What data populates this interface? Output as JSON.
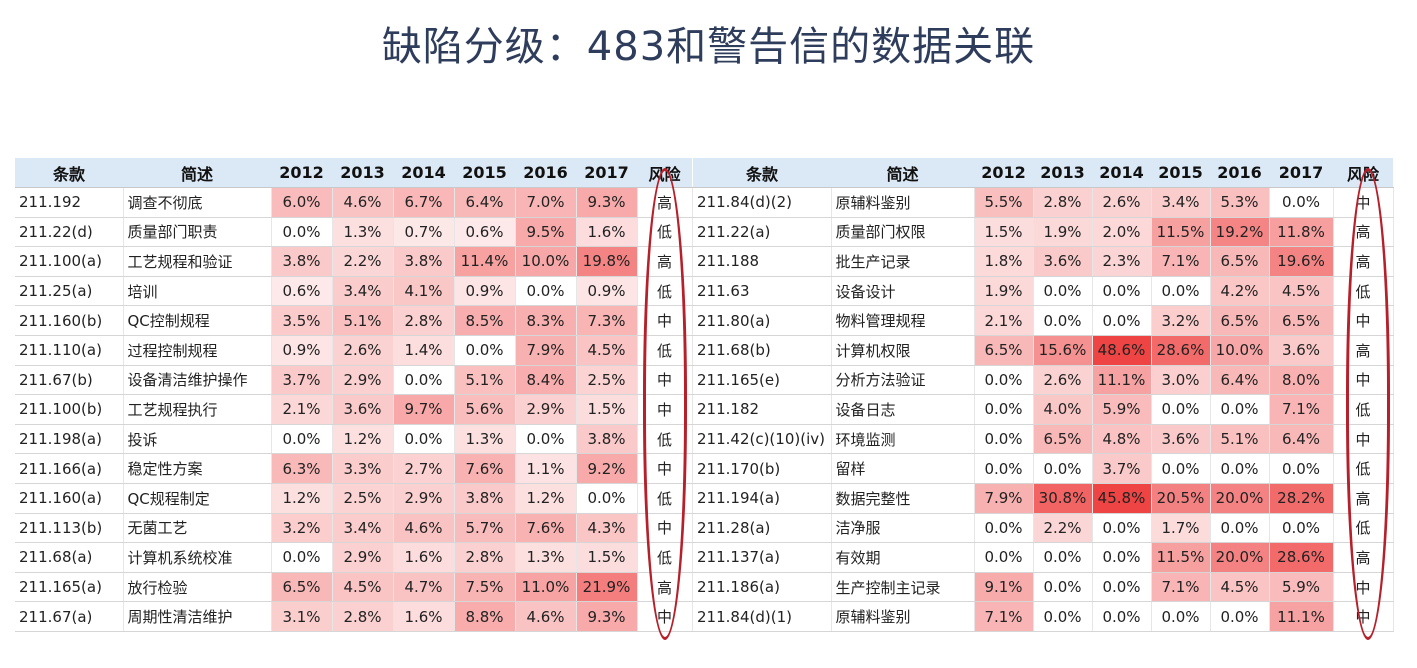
{
  "title": "缺陷分级：483和警告信的数据关联",
  "headers": [
    "条款",
    "简述",
    "2012",
    "2013",
    "2014",
    "2015",
    "2016",
    "2017",
    "风险"
  ],
  "left_rows": [
    {
      "code": "211.192",
      "desc": "调查不彻底",
      "values": [
        "6.0%",
        "4.6%",
        "6.7%",
        "6.4%",
        "7.0%",
        "9.3%"
      ],
      "risk": "高"
    },
    {
      "code": "211.22(d)",
      "desc": "质量部门职责",
      "values": [
        "0.0%",
        "1.3%",
        "0.7%",
        "0.6%",
        "9.5%",
        "1.6%"
      ],
      "risk": "低"
    },
    {
      "code": "211.100(a)",
      "desc": "工艺规程和验证",
      "values": [
        "3.8%",
        "2.2%",
        "3.8%",
        "11.4%",
        "10.0%",
        "19.8%"
      ],
      "risk": "高"
    },
    {
      "code": "211.25(a)",
      "desc": "培训",
      "values": [
        "0.6%",
        "3.4%",
        "4.1%",
        "0.9%",
        "0.0%",
        "0.9%"
      ],
      "risk": "低"
    },
    {
      "code": "211.160(b)",
      "desc": "QC控制规程",
      "values": [
        "3.5%",
        "5.1%",
        "2.8%",
        "8.5%",
        "8.3%",
        "7.3%"
      ],
      "risk": "中"
    },
    {
      "code": "211.110(a)",
      "desc": "过程控制规程",
      "values": [
        "0.9%",
        "2.6%",
        "1.4%",
        "0.0%",
        "7.9%",
        "4.5%"
      ],
      "risk": "低"
    },
    {
      "code": "211.67(b)",
      "desc": "设备清洁维护操作",
      "values": [
        "3.7%",
        "2.9%",
        "0.0%",
        "5.1%",
        "8.4%",
        "2.5%"
      ],
      "risk": "中"
    },
    {
      "code": "211.100(b)",
      "desc": "工艺规程执行",
      "values": [
        "2.1%",
        "3.6%",
        "9.7%",
        "5.6%",
        "2.9%",
        "1.5%"
      ],
      "risk": "中"
    },
    {
      "code": "211.198(a)",
      "desc": "投诉",
      "values": [
        "0.0%",
        "1.2%",
        "0.0%",
        "1.3%",
        "0.0%",
        "3.8%"
      ],
      "risk": "低"
    },
    {
      "code": "211.166(a)",
      "desc": "稳定性方案",
      "values": [
        "6.3%",
        "3.3%",
        "2.7%",
        "7.6%",
        "1.1%",
        "9.2%"
      ],
      "risk": "中"
    },
    {
      "code": "211.160(a)",
      "desc": "QC规程制定",
      "values": [
        "1.2%",
        "2.5%",
        "2.9%",
        "3.8%",
        "1.2%",
        "0.0%"
      ],
      "risk": "低"
    },
    {
      "code": "211.113(b)",
      "desc": "无菌工艺",
      "values": [
        "3.2%",
        "3.4%",
        "4.6%",
        "5.7%",
        "7.6%",
        "4.3%"
      ],
      "risk": "中"
    },
    {
      "code": "211.68(a)",
      "desc": "计算机系统校准",
      "values": [
        "0.0%",
        "2.9%",
        "1.6%",
        "2.8%",
        "1.3%",
        "1.5%"
      ],
      "risk": "低"
    },
    {
      "code": "211.165(a)",
      "desc": "放行检验",
      "values": [
        "6.5%",
        "4.5%",
        "4.7%",
        "7.5%",
        "11.0%",
        "21.9%"
      ],
      "risk": "高"
    },
    {
      "code": "211.67(a)",
      "desc": "周期性清洁维护",
      "values": [
        "3.1%",
        "2.8%",
        "1.6%",
        "8.8%",
        "4.6%",
        "9.3%"
      ],
      "risk": "中"
    }
  ],
  "right_rows": [
    {
      "code": "211.84(d)(2)",
      "desc": "原辅料鉴别",
      "values": [
        "5.5%",
        "2.8%",
        "2.6%",
        "3.4%",
        "5.3%",
        "0.0%"
      ],
      "risk": "中"
    },
    {
      "code": "211.22(a)",
      "desc": "质量部门权限",
      "values": [
        "1.5%",
        "1.9%",
        "2.0%",
        "11.5%",
        "19.2%",
        "11.8%"
      ],
      "risk": "高"
    },
    {
      "code": "211.188",
      "desc": "批生产记录",
      "values": [
        "1.8%",
        "3.6%",
        "2.3%",
        "7.1%",
        "6.5%",
        "19.6%"
      ],
      "risk": "高"
    },
    {
      "code": "211.63",
      "desc": "设备设计",
      "values": [
        "1.9%",
        "0.0%",
        "0.0%",
        "0.0%",
        "4.2%",
        "4.5%"
      ],
      "risk": "低"
    },
    {
      "code": "211.80(a)",
      "desc": "物料管理规程",
      "values": [
        "2.1%",
        "0.0%",
        "0.0%",
        "3.2%",
        "6.5%",
        "6.5%"
      ],
      "risk": "中"
    },
    {
      "code": "211.68(b)",
      "desc": "计算机权限",
      "values": [
        "6.5%",
        "15.6%",
        "48.6%",
        "28.6%",
        "10.0%",
        "3.6%"
      ],
      "risk": "高"
    },
    {
      "code": "211.165(e)",
      "desc": "分析方法验证",
      "values": [
        "0.0%",
        "2.6%",
        "11.1%",
        "3.0%",
        "6.4%",
        "8.0%"
      ],
      "risk": "中"
    },
    {
      "code": "211.182",
      "desc": "设备日志",
      "values": [
        "0.0%",
        "4.0%",
        "5.9%",
        "0.0%",
        "0.0%",
        "7.1%"
      ],
      "risk": "低"
    },
    {
      "code": "211.42(c)(10)(iv)",
      "desc": "环境监测",
      "values": [
        "0.0%",
        "6.5%",
        "4.8%",
        "3.6%",
        "5.1%",
        "6.4%"
      ],
      "risk": "中"
    },
    {
      "code": "211.170(b)",
      "desc": "留样",
      "values": [
        "0.0%",
        "0.0%",
        "3.7%",
        "0.0%",
        "0.0%",
        "0.0%"
      ],
      "risk": "低"
    },
    {
      "code": "211.194(a)",
      "desc": "数据完整性",
      "values": [
        "7.9%",
        "30.8%",
        "45.8%",
        "20.5%",
        "20.0%",
        "28.2%"
      ],
      "risk": "高"
    },
    {
      "code": "211.28(a)",
      "desc": "洁净服",
      "values": [
        "0.0%",
        "2.2%",
        "0.0%",
        "1.7%",
        "0.0%",
        "0.0%"
      ],
      "risk": "低"
    },
    {
      "code": "211.137(a)",
      "desc": "有效期",
      "values": [
        "0.0%",
        "0.0%",
        "0.0%",
        "11.5%",
        "20.0%",
        "28.6%"
      ],
      "risk": "高"
    },
    {
      "code": "211.186(a)",
      "desc": "生产控制主记录",
      "values": [
        "9.1%",
        "0.0%",
        "0.0%",
        "7.1%",
        "4.5%",
        "5.9%"
      ],
      "risk": "中"
    },
    {
      "code": "211.84(d)(1)",
      "desc": "原辅料鉴别",
      "values": [
        "7.1%",
        "0.0%",
        "0.0%",
        "0.0%",
        "0.0%",
        "11.1%"
      ],
      "risk": "中"
    }
  ],
  "colors": {
    "header_bg": "#dbe8f5",
    "title": "#2f3d5c",
    "heat_max": "#ef4444",
    "ellipse": "#b5202a"
  }
}
